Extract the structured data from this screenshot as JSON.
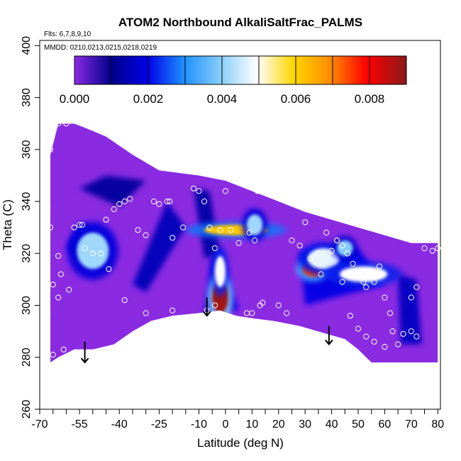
{
  "chart_data": {
    "type": "heatmap",
    "title": "ATOM2 Northbound AlkaliSaltFrac_PALMS",
    "flights_note": "Flts: 6,7,8,9,10",
    "dates_note": "MMDD: 0210,0213,0215,0218,0219",
    "xlabel": "Latitude (deg N)",
    "ylabel": "Theta (C)",
    "xlim": [
      -70,
      81
    ],
    "ylim": [
      260,
      402
    ],
    "x_ticks": [
      -70,
      -55,
      -40,
      -25,
      -10,
      0,
      10,
      20,
      30,
      40,
      50,
      60,
      70,
      80
    ],
    "x_tick_labels": [
      "-70",
      "-55",
      "-40",
      "-25",
      "-10",
      "0",
      "10",
      "20",
      "30",
      "40",
      "50",
      "60",
      "70",
      "80"
    ],
    "x_minor_ticks": [
      -65,
      -60,
      -50,
      -45,
      -35,
      -30,
      -20,
      -15,
      -5,
      5,
      15,
      25,
      35,
      45,
      55,
      65,
      75
    ],
    "y_ticks": [
      260,
      280,
      300,
      320,
      340,
      360,
      380,
      400
    ],
    "y_tick_labels": [
      "260",
      "280",
      "300",
      "320",
      "340",
      "360",
      "380",
      "400"
    ],
    "colorbar": {
      "min": 0.0,
      "max": 0.009,
      "ticks": [
        0.0,
        0.002,
        0.004,
        0.006,
        0.008
      ],
      "tick_labels": [
        "0.000",
        "0.002",
        "0.004",
        "0.006",
        "0.008"
      ],
      "colors": [
        "#8a2be2",
        "#00008b",
        "#0000e6",
        "#1e90ff",
        "#87cefa",
        "#ffffff",
        "#ffd700",
        "#ff8c00",
        "#ff0000",
        "#8b1a1a"
      ]
    },
    "background_color": "#8a2be2",
    "boundary": {
      "top": [
        [
          -66,
          358
        ],
        [
          -63,
          370
        ],
        [
          -57,
          370
        ],
        [
          -52,
          368
        ],
        [
          -45,
          365
        ],
        [
          -35,
          358
        ],
        [
          -25,
          352
        ],
        [
          -10,
          350
        ],
        [
          0,
          348
        ],
        [
          10,
          344
        ],
        [
          20,
          340
        ],
        [
          30,
          336
        ],
        [
          40,
          333
        ],
        [
          50,
          330
        ],
        [
          60,
          327
        ],
        [
          70,
          324
        ],
        [
          80,
          324
        ]
      ],
      "bottom": [
        [
          80,
          278
        ],
        [
          65,
          278
        ],
        [
          55,
          278
        ],
        [
          50,
          283
        ],
        [
          45,
          287
        ],
        [
          38,
          289
        ],
        [
          28,
          292
        ],
        [
          18,
          294
        ],
        [
          10,
          295
        ],
        [
          4,
          296
        ],
        [
          -2,
          298
        ],
        [
          -10,
          297
        ],
        [
          -20,
          296
        ],
        [
          -28,
          294
        ],
        [
          -35,
          290
        ],
        [
          -42,
          285
        ],
        [
          -50,
          283
        ],
        [
          -57,
          283
        ],
        [
          -63,
          280
        ],
        [
          -66,
          278
        ]
      ]
    },
    "hot_spots": [
      {
        "x": -50,
        "y": 321,
        "value": 0.0042,
        "rx": 6,
        "ry": 7
      },
      {
        "x": -2,
        "y": 303,
        "value": 0.0088,
        "rx": 3,
        "ry": 6
      },
      {
        "x": -2,
        "y": 313,
        "value": 0.005,
        "rx": 2,
        "ry": 6
      },
      {
        "x": 4,
        "y": 329,
        "value": 0.0062,
        "rx": 12,
        "ry": 2
      },
      {
        "x": 11,
        "y": 331,
        "value": 0.0042,
        "rx": 3,
        "ry": 4
      },
      {
        "x": 33,
        "y": 314,
        "value": 0.0075,
        "rx": 4,
        "ry": 3
      },
      {
        "x": 37,
        "y": 318,
        "value": 0.0048,
        "rx": 6,
        "ry": 4
      },
      {
        "x": 56,
        "y": 312,
        "value": 0.0078,
        "rx": 3,
        "ry": 2
      },
      {
        "x": 52,
        "y": 312,
        "value": 0.005,
        "rx": 9,
        "ry": 3
      },
      {
        "x": 45,
        "y": 322,
        "value": 0.004,
        "rx": 3,
        "ry": 3
      }
    ],
    "blue_bands": [
      {
        "points": [
          [
            -50,
            315
          ],
          [
            -43,
            325
          ],
          [
            -55,
            332
          ],
          [
            -60,
            322
          ]
        ],
        "value": 0.0018
      },
      {
        "points": [
          [
            -5,
            320
          ],
          [
            -2,
            322
          ],
          [
            5,
            298
          ],
          [
            -8,
            298
          ]
        ],
        "value": 0.002
      },
      {
        "points": [
          [
            -22,
            340
          ],
          [
            -15,
            330
          ],
          [
            -30,
            305
          ],
          [
            -35,
            308
          ]
        ],
        "value": 0.0015
      },
      {
        "points": [
          [
            28,
            320
          ],
          [
            50,
            322
          ],
          [
            60,
            308
          ],
          [
            30,
            300
          ]
        ],
        "value": 0.002
      },
      {
        "points": [
          [
            -12,
            345
          ],
          [
            -6,
            344
          ],
          [
            -2,
            320
          ],
          [
            -8,
            318
          ]
        ],
        "value": 0.0013
      },
      {
        "points": [
          [
            65,
            312
          ],
          [
            72,
            310
          ],
          [
            74,
            285
          ],
          [
            66,
            285
          ]
        ],
        "value": 0.0016
      },
      {
        "points": [
          [
            -45,
            350
          ],
          [
            -30,
            348
          ],
          [
            -40,
            338
          ],
          [
            -55,
            345
          ]
        ],
        "value": 0.0012
      }
    ],
    "sample_points": [
      [
        -63,
        370
      ],
      [
        -60,
        370
      ],
      [
        -66,
        360
      ],
      [
        -68,
        343
      ],
      [
        -67,
        338
      ],
      [
        -66,
        330
      ],
      [
        -63,
        319
      ],
      [
        -62,
        312
      ],
      [
        -65,
        308
      ],
      [
        -63,
        303
      ],
      [
        -67,
        297
      ],
      [
        -67,
        279
      ],
      [
        -65,
        281
      ],
      [
        -61,
        283
      ],
      [
        -59,
        306
      ],
      [
        -57,
        330
      ],
      [
        -55,
        331
      ],
      [
        -54,
        331
      ],
      [
        -53,
        322
      ],
      [
        -50,
        320
      ],
      [
        -47,
        320
      ],
      [
        -44,
        314
      ],
      [
        -45,
        333
      ],
      [
        -42,
        337
      ],
      [
        -40,
        339
      ],
      [
        -38,
        340
      ],
      [
        -36,
        341
      ],
      [
        -38,
        302
      ],
      [
        -33,
        329
      ],
      [
        -30,
        327
      ],
      [
        -30,
        297
      ],
      [
        -27,
        340
      ],
      [
        -25,
        339
      ],
      [
        -22,
        340
      ],
      [
        -21,
        340
      ],
      [
        -20,
        326
      ],
      [
        -20,
        298
      ],
      [
        -16,
        330
      ],
      [
        -12,
        345
      ],
      [
        -10,
        344
      ],
      [
        -8,
        340
      ],
      [
        -7,
        298
      ],
      [
        -6,
        330
      ],
      [
        -4,
        322
      ],
      [
        -4,
        300
      ],
      [
        -2,
        329
      ],
      [
        0,
        344
      ],
      [
        2,
        329
      ],
      [
        5,
        324
      ],
      [
        8,
        297
      ],
      [
        9,
        328
      ],
      [
        11,
        325
      ],
      [
        10,
        297
      ],
      [
        13,
        300
      ],
      [
        14,
        301
      ],
      [
        12,
        344
      ],
      [
        18,
        344
      ],
      [
        20,
        344
      ],
      [
        20,
        300
      ],
      [
        23,
        297
      ],
      [
        27,
        347
      ],
      [
        25,
        325
      ],
      [
        28,
        323
      ],
      [
        30,
        332
      ],
      [
        32,
        318
      ],
      [
        35,
        320
      ],
      [
        36,
        312
      ],
      [
        38,
        328
      ],
      [
        40,
        321
      ],
      [
        42,
        325
      ],
      [
        44,
        323
      ],
      [
        46,
        320
      ],
      [
        48,
        316
      ],
      [
        50,
        312
      ],
      [
        52,
        309
      ],
      [
        53,
        307
      ],
      [
        55,
        311
      ],
      [
        56,
        309
      ],
      [
        57,
        311
      ],
      [
        58,
        315
      ],
      [
        60,
        303
      ],
      [
        62,
        297
      ],
      [
        63,
        290
      ],
      [
        65,
        285
      ],
      [
        67,
        289
      ],
      [
        70,
        303
      ],
      [
        72,
        307
      ],
      [
        75,
        322
      ],
      [
        78,
        321
      ],
      [
        80,
        322
      ],
      [
        42,
        325
      ],
      [
        44,
        309
      ],
      [
        47,
        296
      ],
      [
        50,
        291
      ],
      [
        53,
        288
      ],
      [
        56,
        286
      ],
      [
        60,
        284
      ],
      [
        70,
        290
      ],
      [
        72,
        288
      ]
    ],
    "arrows": [
      {
        "x": -53,
        "y_top": 286,
        "y_bottom": 278
      },
      {
        "x": -7,
        "y_top": 303,
        "y_bottom": 296
      },
      {
        "x": 39,
        "y_top": 292,
        "y_bottom": 285
      }
    ]
  }
}
